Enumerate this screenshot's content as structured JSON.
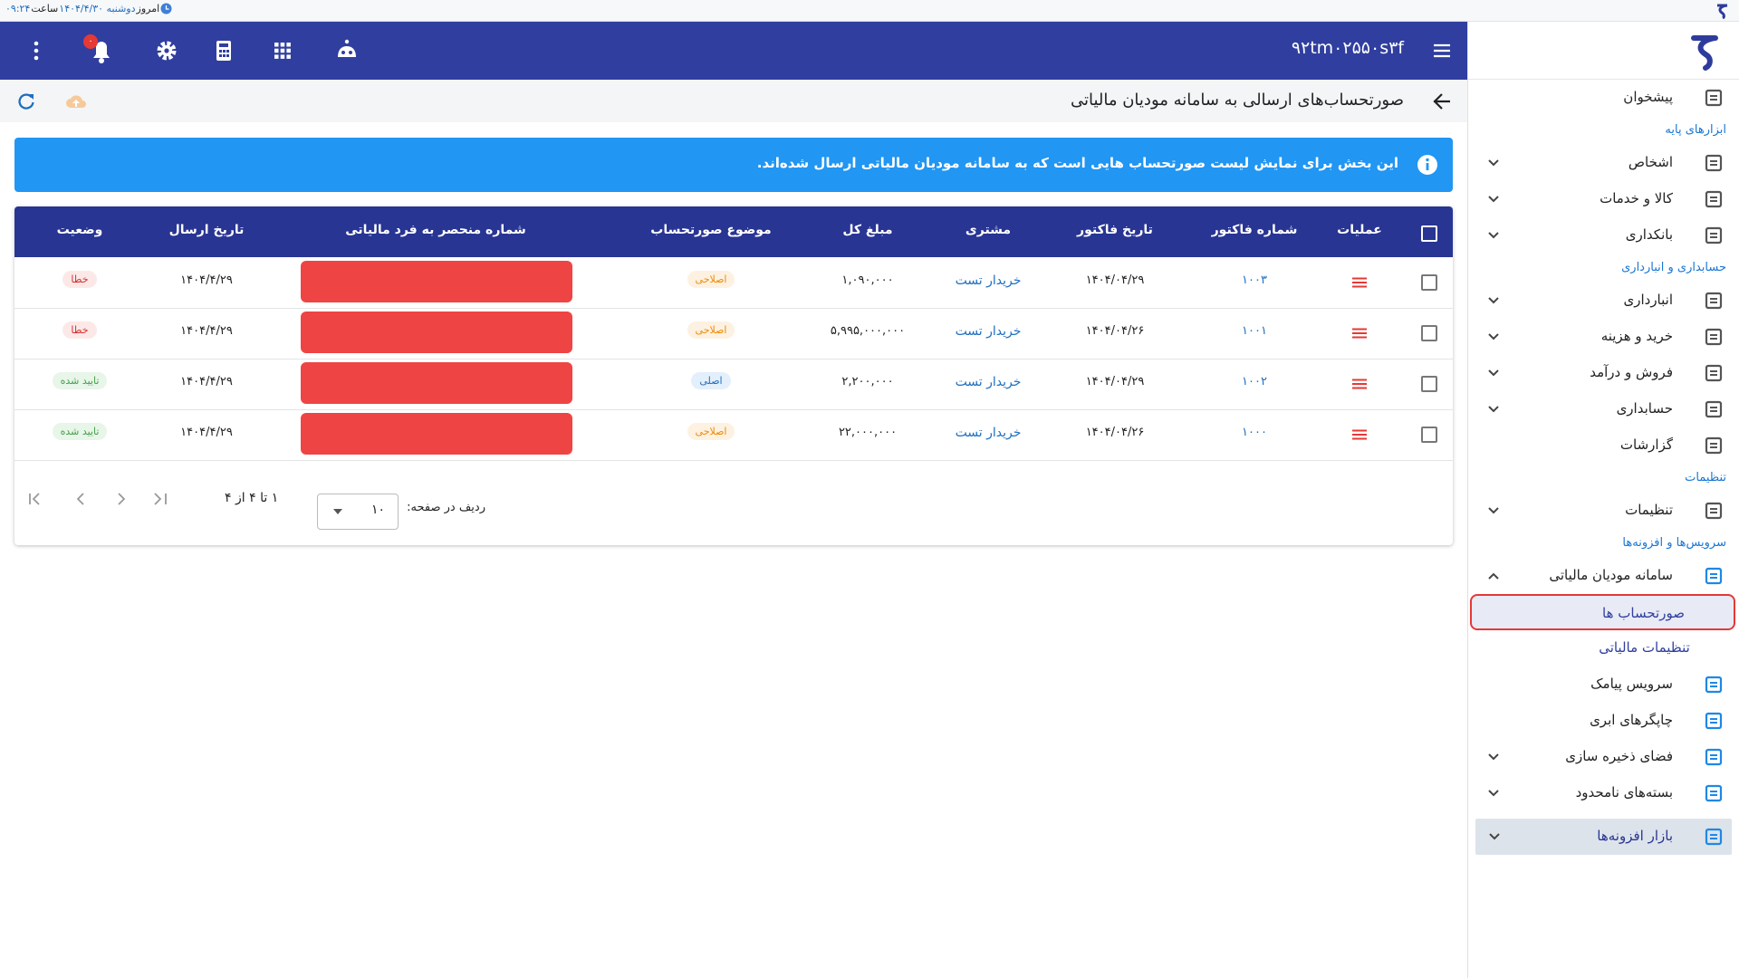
{
  "status_bar": {
    "today": "امروز",
    "date": "دوشنبه ۱۴۰۴/۴/۳۰",
    "time_label": "ساعت",
    "time": "۰۹:۲۴"
  },
  "header": {
    "company": "۹۲tm۰۲۵۵۰s۳f",
    "notification_badge": "۰"
  },
  "page": {
    "title": "صورتحساب‌های ارسالی به سامانه مودیان مالیاتی"
  },
  "banner": {
    "text": "این بخش برای نمایش لیست صورتحساب هایی است که به سامانه مودیان مالیاتی ارسال شده‌اند."
  },
  "table": {
    "columns": [
      "عملیات",
      "شماره فاکتور",
      "تاریخ فاکتور",
      "مشتری",
      "مبلغ کل",
      "موضوع صورتحساب",
      "شماره منحصر به فرد مالیاتی",
      "تاریخ ارسال",
      "وضعیت"
    ],
    "rows": [
      {
        "invoice_no": "۱۰۰۳",
        "invoice_date": "۱۴۰۴/۰۴/۲۹",
        "customer": "خریدار تست",
        "amount": "۱,۰۹۰,۰۰۰",
        "subject": "اصلاحی",
        "subject_tone": "orange",
        "send_date": "۱۴۰۴/۴/۲۹",
        "status": "خطا",
        "status_tone": "red"
      },
      {
        "invoice_no": "۱۰۰۱",
        "invoice_date": "۱۴۰۴/۰۴/۲۶",
        "customer": "خریدار تست",
        "amount": "۵,۹۹۵,۰۰۰,۰۰۰",
        "subject": "اصلاحی",
        "subject_tone": "orange",
        "send_date": "۱۴۰۴/۴/۲۹",
        "status": "خطا",
        "status_tone": "red"
      },
      {
        "invoice_no": "۱۰۰۲",
        "invoice_date": "۱۴۰۴/۰۴/۲۹",
        "customer": "خریدار تست",
        "amount": "۲,۲۰۰,۰۰۰",
        "subject": "اصلی",
        "subject_tone": "blue",
        "send_date": "۱۴۰۴/۴/۲۹",
        "status": "تایید شده",
        "status_tone": "green"
      },
      {
        "invoice_no": "۱۰۰۰",
        "invoice_date": "۱۴۰۴/۰۴/۲۶",
        "customer": "خریدار تست",
        "amount": "۲۲,۰۰۰,۰۰۰",
        "subject": "اصلاحی",
        "subject_tone": "orange",
        "send_date": "۱۴۰۴/۴/۲۹",
        "status": "تایید شده",
        "status_tone": "green"
      }
    ]
  },
  "pagination": {
    "rows_per_page_label": "ردیف در صفحه:",
    "rows_per_page": "۱۰",
    "range": "۱ تا ۴ از ۴"
  },
  "sidebar": [
    {
      "kind": "item",
      "label": "پیشخوان"
    },
    {
      "kind": "section",
      "label": "ابزارهای پایه"
    },
    {
      "kind": "item",
      "label": "اشخاص",
      "chevron": "down"
    },
    {
      "kind": "item",
      "label": "کالا و خدمات",
      "chevron": "down"
    },
    {
      "kind": "item",
      "label": "بانکداری",
      "chevron": "down"
    },
    {
      "kind": "section",
      "label": "حسابداری و انبارداری"
    },
    {
      "kind": "item",
      "label": "انبارداری",
      "chevron": "down"
    },
    {
      "kind": "item",
      "label": "خرید و هزینه",
      "chevron": "down"
    },
    {
      "kind": "item",
      "label": "فروش و درآمد",
      "chevron": "down"
    },
    {
      "kind": "item",
      "label": "حسابداری",
      "chevron": "down"
    },
    {
      "kind": "item",
      "label": "گزارشات"
    },
    {
      "kind": "section",
      "label": "تنظیمات"
    },
    {
      "kind": "item",
      "label": "تنظیمات",
      "chevron": "down"
    },
    {
      "kind": "section",
      "label": "سرویس‌ها و افزونه‌ها"
    },
    {
      "kind": "item",
      "label": "سامانه مودیان مالیاتی",
      "chevron": "up"
    },
    {
      "kind": "subitem",
      "label": "صورتحساب ها",
      "active": true
    },
    {
      "kind": "subitem",
      "label": "تنظیمات مالیاتی"
    },
    {
      "kind": "item",
      "label": "سرویس پیامک"
    },
    {
      "kind": "item",
      "label": "چاپگرهای ابری"
    },
    {
      "kind": "item",
      "label": "فضای ذخیره سازی",
      "chevron": "down"
    },
    {
      "kind": "item",
      "label": "بسته‌های نامحدود",
      "chevron": "down"
    },
    {
      "kind": "market",
      "label": "بازار افزونه‌ها",
      "chevron": "down"
    }
  ]
}
